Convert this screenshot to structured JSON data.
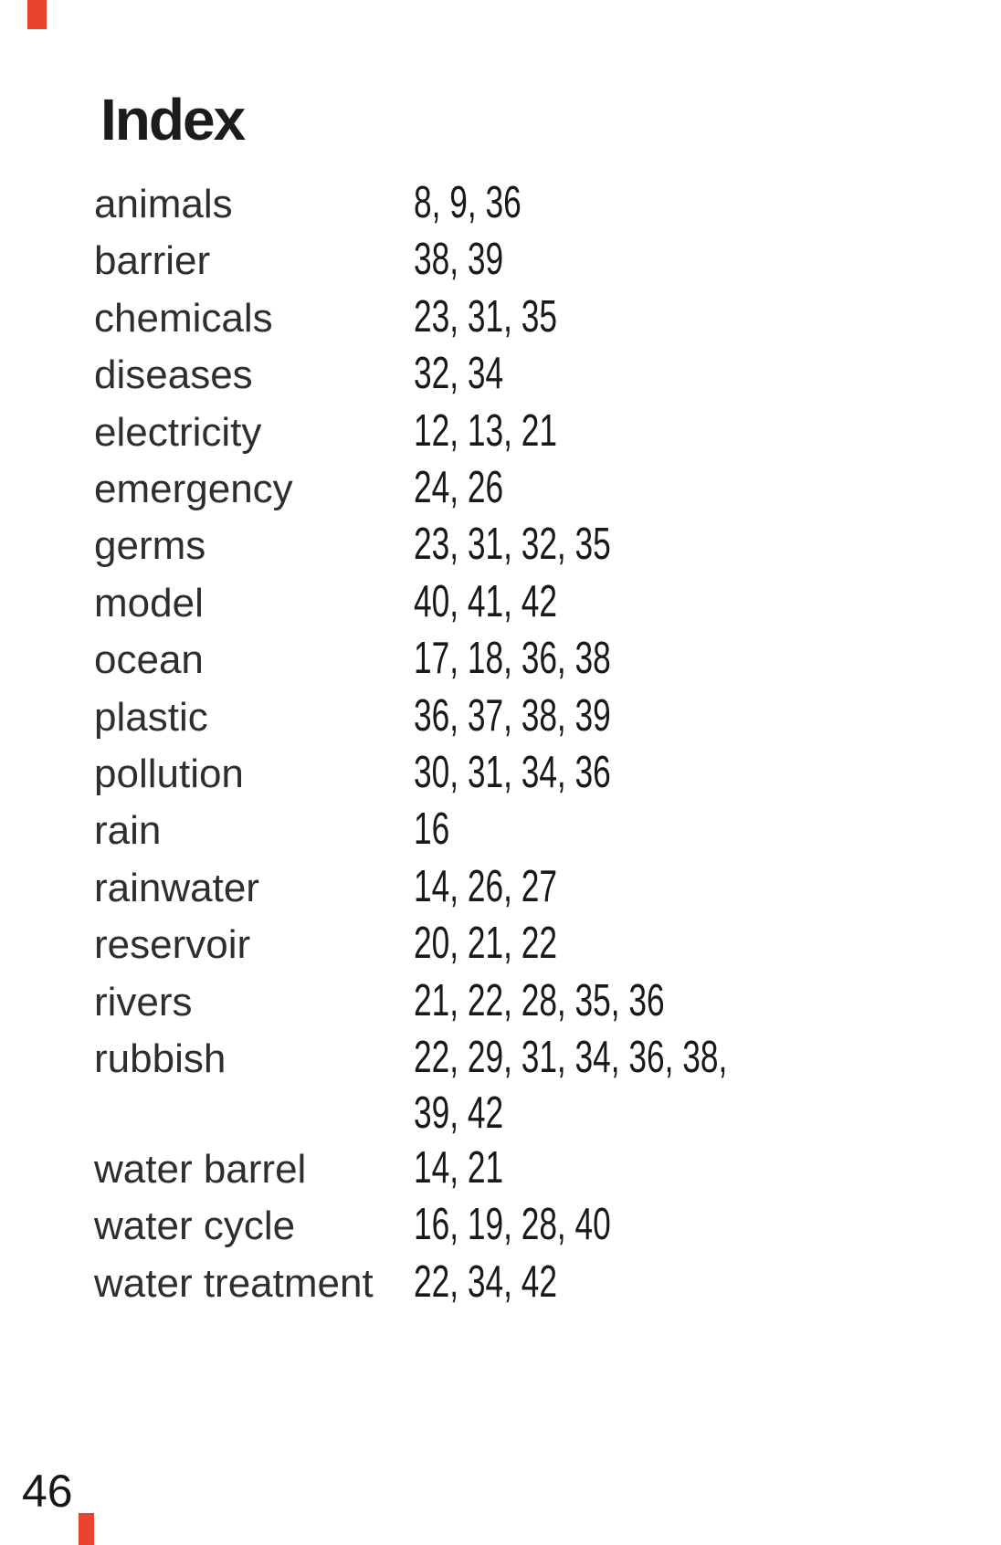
{
  "page": {
    "title": "Index",
    "page_number": "46",
    "accent_red": "#e8432c",
    "entries": [
      {
        "term": "animals",
        "pages": "8, 9, 36"
      },
      {
        "term": "barrier",
        "pages": "38, 39"
      },
      {
        "term": "chemicals",
        "pages": "23, 31, 35"
      },
      {
        "term": "diseases",
        "pages": "32, 34"
      },
      {
        "term": "electricity",
        "pages": "12, 13, 21"
      },
      {
        "term": "emergency",
        "pages": "24, 26"
      },
      {
        "term": "germs",
        "pages": "23, 31, 32, 35"
      },
      {
        "term": "model",
        "pages": "40, 41, 42"
      },
      {
        "term": "ocean",
        "pages": "17, 18, 36, 38"
      },
      {
        "term": "plastic",
        "pages": "36, 37, 38, 39"
      },
      {
        "term": "pollution",
        "pages": "30, 31, 34, 36"
      },
      {
        "term": "rain",
        "pages": "16"
      },
      {
        "term": "rainwater",
        "pages": "14, 26, 27"
      },
      {
        "term": "reservoir",
        "pages": "20, 21, 22"
      },
      {
        "term": "rivers",
        "pages": "21, 22, 28, 35, 36"
      },
      {
        "term": "rubbish",
        "pages": "22, 29, 31, 34, 36, 38, 39, 42"
      },
      {
        "term": "water barrel",
        "pages": "14, 21"
      },
      {
        "term": "water cycle",
        "pages": "16, 19, 28, 40"
      },
      {
        "term": "water treatment",
        "pages": "22, 34, 42"
      }
    ]
  }
}
